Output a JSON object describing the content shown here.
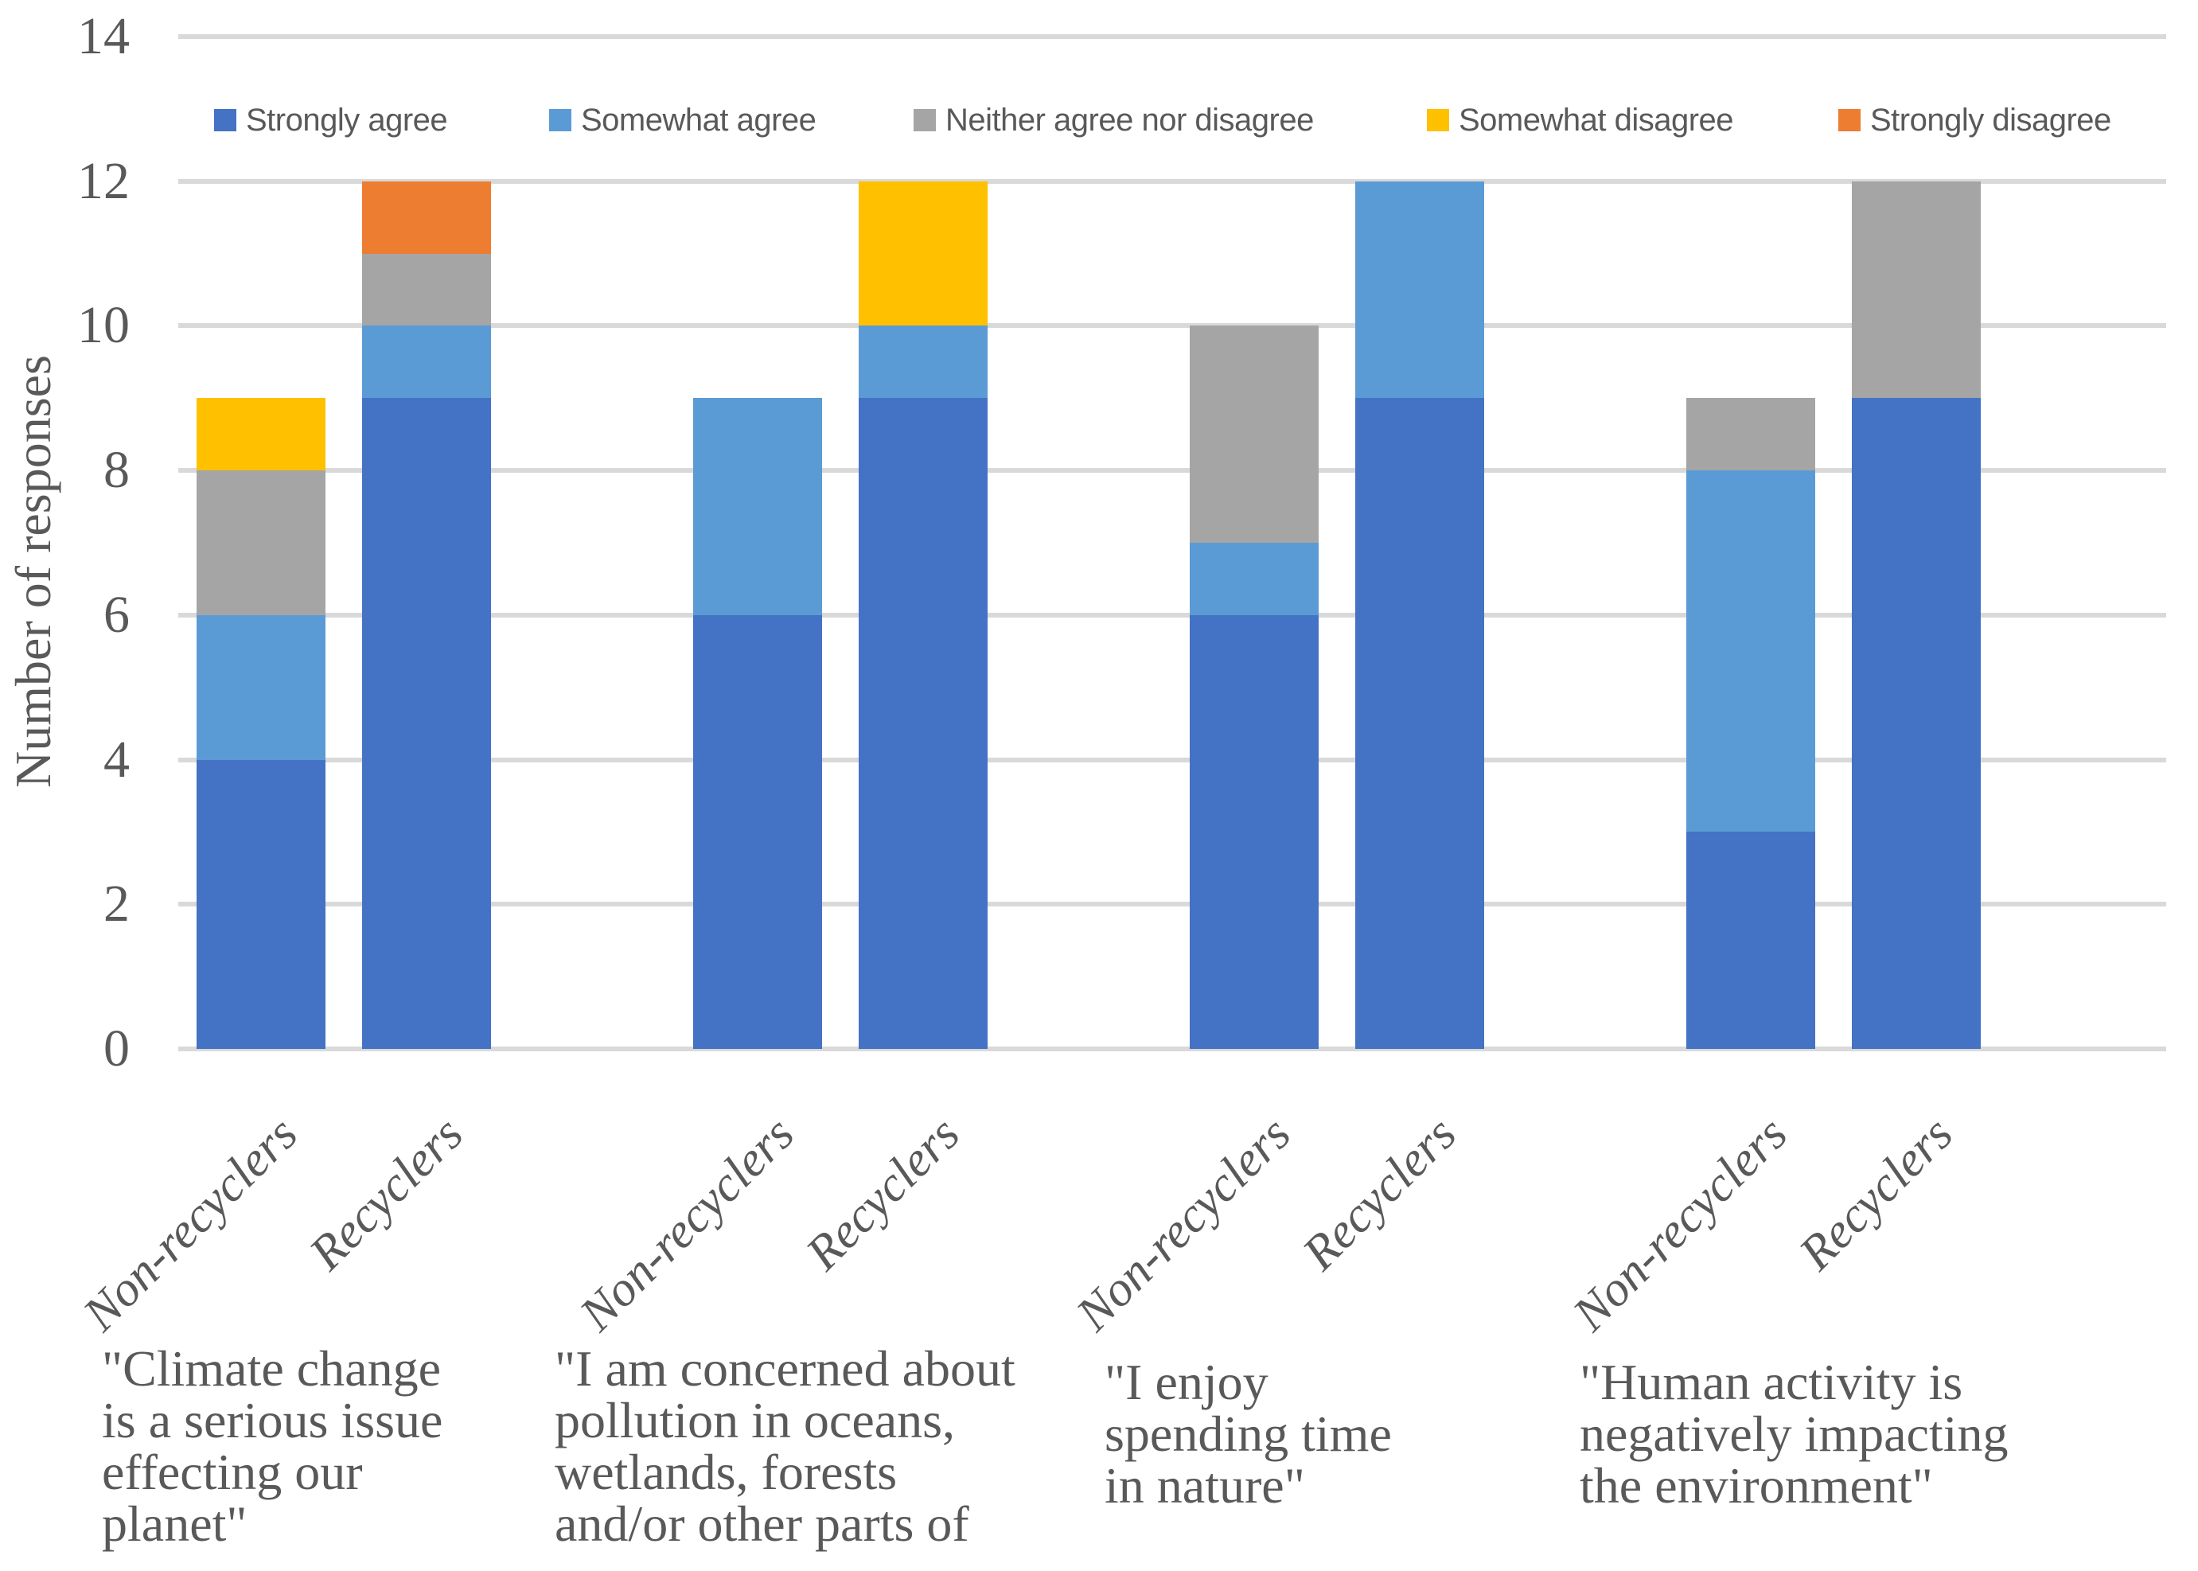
{
  "chart_data": {
    "type": "bar",
    "stacked": true,
    "title": "",
    "xlabel": "",
    "ylabel": "Number of responses",
    "ylim": [
      0,
      14
    ],
    "yticks": [
      0,
      2,
      4,
      6,
      8,
      10,
      12,
      14
    ],
    "grid": "horizontal",
    "legend_position": "top",
    "gridline_color": "#d9d9d9",
    "text_color": "#595959",
    "bar_labels": [
      "Non-recyclers",
      "Recyclers",
      "Non-recyclers",
      "Recyclers",
      "Non-recyclers",
      "Recyclers",
      "Non-recyclers",
      "Recyclers"
    ],
    "group_questions": [
      {
        "lines": [
          "\"Climate change",
          "is a serious issue",
          "effecting our",
          "planet\""
        ]
      },
      {
        "lines": [
          "\"I am concerned about",
          "pollution in oceans,",
          "wetlands, forests",
          "and/or other parts of"
        ]
      },
      {
        "lines": [
          "\"I enjoy",
          "spending time",
          "in nature\""
        ]
      },
      {
        "lines": [
          "\"Human activity is",
          "negatively impacting",
          "the environment\""
        ]
      }
    ],
    "series": [
      {
        "name": "Strongly agree",
        "color": "#4472c4",
        "values": [
          4,
          9,
          6,
          9,
          6,
          9,
          3,
          9
        ]
      },
      {
        "name": "Somewhat agree",
        "color": "#5b9bd5",
        "values": [
          2,
          1,
          3,
          1,
          1,
          3,
          5,
          0
        ]
      },
      {
        "name": "Neither agree nor disagree",
        "color": "#a5a5a5",
        "values": [
          2,
          1,
          0,
          0,
          3,
          0,
          1,
          3
        ]
      },
      {
        "name": "Somewhat disagree",
        "color": "#ffc000",
        "values": [
          1,
          0,
          0,
          2,
          0,
          0,
          0,
          0
        ]
      },
      {
        "name": "Strongly disagree",
        "color": "#ed7d31",
        "values": [
          0,
          1,
          0,
          0,
          0,
          0,
          0,
          0
        ]
      }
    ]
  }
}
